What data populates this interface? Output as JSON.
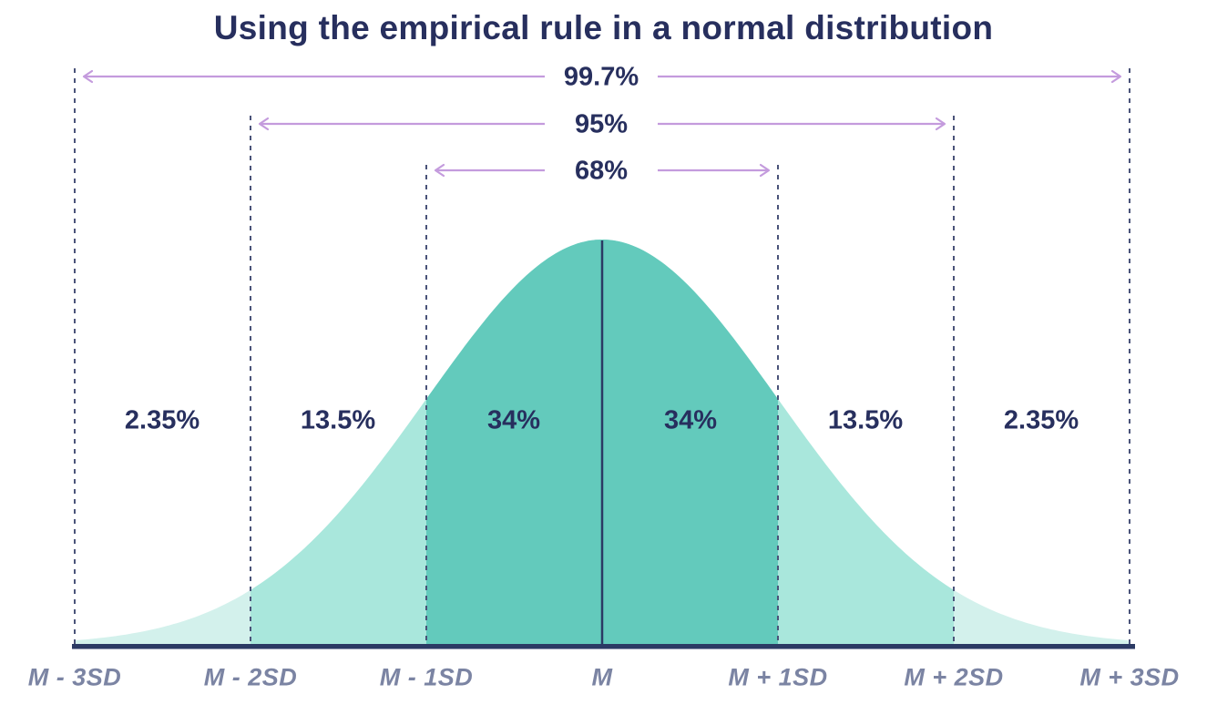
{
  "chart_data": {
    "type": "area",
    "subtype": "normal-distribution-empirical-rule",
    "title": "Using the empirical rule in a normal distribution",
    "x_tick_labels": [
      "M - 3SD",
      "M - 2SD",
      "M - 1SD",
      "M",
      "M + 1SD",
      "M + 2SD",
      "M + 3SD"
    ],
    "segments": [
      {
        "from": "M - 3SD",
        "to": "M - 2SD",
        "label": "2.35%",
        "value": 2.35
      },
      {
        "from": "M - 2SD",
        "to": "M - 1SD",
        "label": "13.5%",
        "value": 13.5
      },
      {
        "from": "M - 1SD",
        "to": "M",
        "label": "34%",
        "value": 34
      },
      {
        "from": "M",
        "to": "M + 1SD",
        "label": "34%",
        "value": 34
      },
      {
        "from": "M + 1SD",
        "to": "M + 2SD",
        "label": "13.5%",
        "value": 13.5
      },
      {
        "from": "M + 2SD",
        "to": "M + 3SD",
        "label": "2.35%",
        "value": 2.35
      }
    ],
    "interval_arrows": [
      {
        "label": "99.7%",
        "value": 99.7,
        "from": "M - 3SD",
        "to": "M + 3SD"
      },
      {
        "label": "95%",
        "value": 95,
        "from": "M - 2SD",
        "to": "M + 2SD"
      },
      {
        "label": "68%",
        "value": 68,
        "from": "M - 1SD",
        "to": "M + 1SD"
      }
    ],
    "legend": "none",
    "grid": "off"
  },
  "colors": {
    "background": "#ffffff",
    "heading-navy": "#272f5e",
    "band-center-fill": "#63cabc",
    "band-mid-fill": "#a9e7dc",
    "band-tail-fill": "#d3f1ec",
    "arrow-lilac": "#c49bdd",
    "dashed-line": "#4a5379",
    "mean-line": "#2b3a64",
    "axis-line": "#2b3a64",
    "axis-label-gray": "#7b84a3"
  }
}
